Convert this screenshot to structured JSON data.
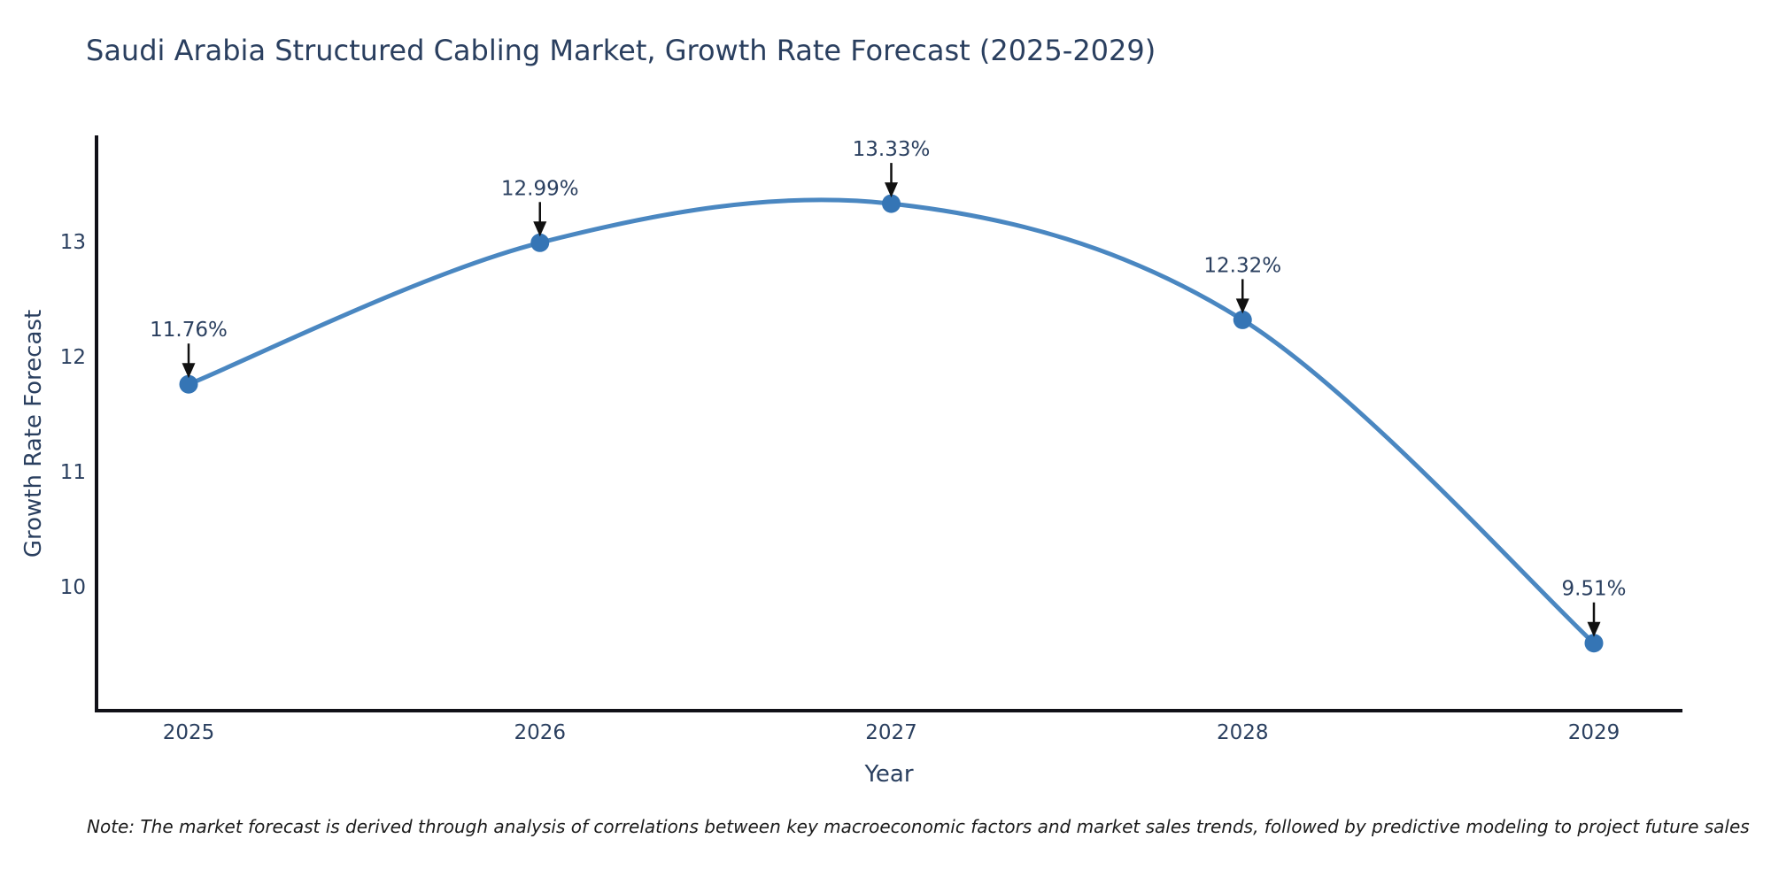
{
  "title": "Saudi Arabia Structured Cabling Market, Growth Rate Forecast (2025-2029)",
  "note": "Note: The market forecast is derived through analysis of correlations between key macroeconomic factors and market sales trends, followed by predictive modeling to project future sales",
  "chart_data": {
    "type": "line",
    "title": "Saudi Arabia Structured Cabling Market, Growth Rate Forecast (2025-2029)",
    "xlabel": "Year",
    "ylabel": "Growth Rate Forecast",
    "categories": [
      "2025",
      "2026",
      "2027",
      "2028",
      "2029"
    ],
    "x": [
      2025,
      2026,
      2027,
      2028,
      2029
    ],
    "values": [
      11.76,
      12.99,
      13.33,
      12.32,
      9.51
    ],
    "point_labels": [
      "11.76%",
      "12.99%",
      "13.33%",
      "12.32%",
      "9.51%"
    ],
    "yticks": [
      10,
      11,
      12,
      13
    ],
    "ylim": [
      8.9,
      13.92
    ],
    "line_shape": "spline",
    "grid": false,
    "legend_position": "none",
    "colors": {
      "line": "#4a87c1",
      "marker": "#3575b5",
      "axis": "#111118",
      "text": "#2a3f5f",
      "arrow": "#111111",
      "background": "#ffffff"
    }
  }
}
